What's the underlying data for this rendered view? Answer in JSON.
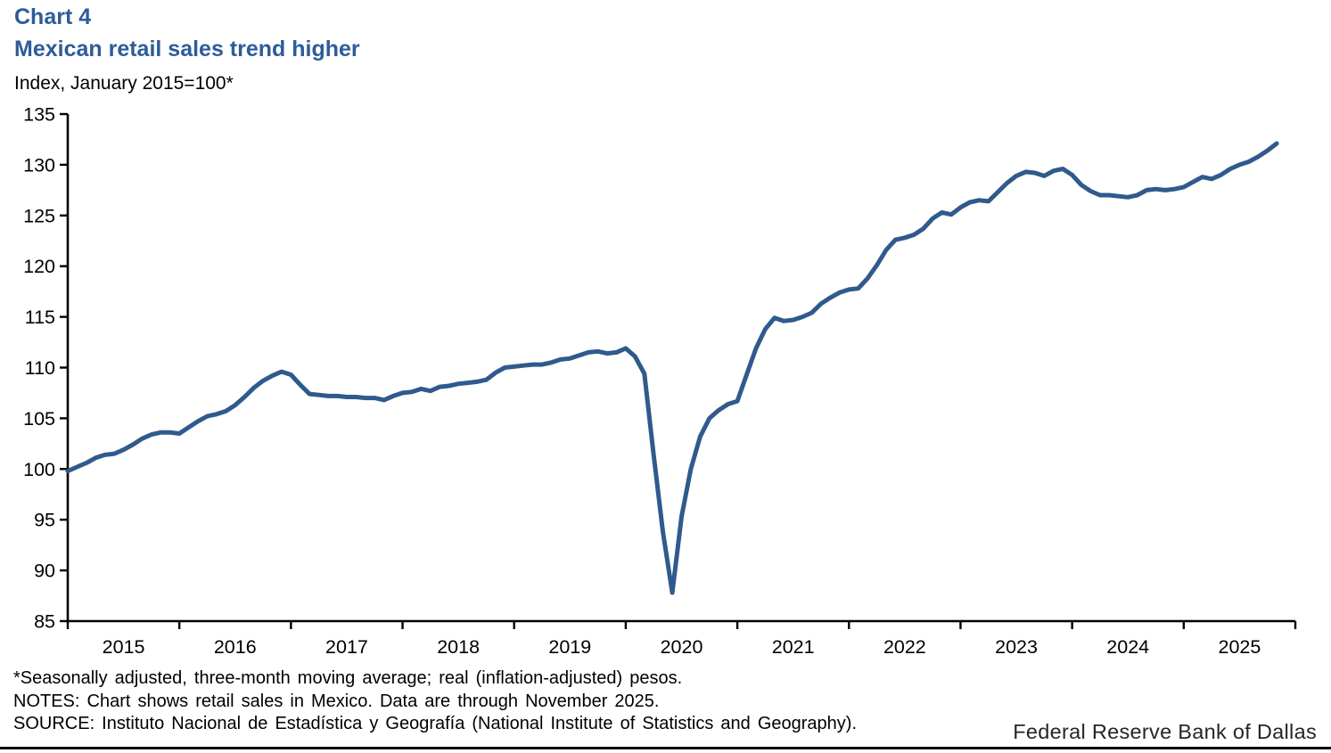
{
  "header": {
    "chart_label": "Chart 4",
    "title": "Mexican retail sales trend higher",
    "subtitle": "Index, January 2015=100*"
  },
  "colors": {
    "title_blue": "#2E5C99",
    "line_blue": "#305A8C",
    "axis_black": "#000000",
    "text_black": "#000000"
  },
  "chart_data": {
    "type": "line",
    "title": "Mexican retail sales trend higher",
    "xlabel": "",
    "ylabel": "Index, January 2015=100*",
    "frequency": "monthly",
    "x_start": "2015-01",
    "x_end": "2025-11",
    "x_tick_labels": [
      "2015",
      "2016",
      "2017",
      "2018",
      "2019",
      "2020",
      "2021",
      "2022",
      "2023",
      "2024",
      "2025"
    ],
    "y_ticks": [
      85,
      90,
      95,
      100,
      105,
      110,
      115,
      120,
      125,
      130,
      135
    ],
    "ylim": [
      85,
      135
    ],
    "grid": false,
    "legend_position": "none",
    "line_color": "#305A8C",
    "series": [
      {
        "name": "Mexican retail sales index (seasonally adjusted, 3-month moving average)",
        "values": [
          99.8,
          100.2,
          100.6,
          101.1,
          101.4,
          101.5,
          101.9,
          102.4,
          103.0,
          103.4,
          103.6,
          103.6,
          103.5,
          104.1,
          104.7,
          105.2,
          105.4,
          105.7,
          106.3,
          107.1,
          108.0,
          108.7,
          109.2,
          109.6,
          109.3,
          108.3,
          107.4,
          107.3,
          107.2,
          107.2,
          107.1,
          107.1,
          107.0,
          107.0,
          106.8,
          107.2,
          107.5,
          107.6,
          107.9,
          107.7,
          108.1,
          108.2,
          108.4,
          108.5,
          108.6,
          108.8,
          109.5,
          110.0,
          110.1,
          110.2,
          110.3,
          110.3,
          110.5,
          110.8,
          110.9,
          111.2,
          111.5,
          111.6,
          111.4,
          111.5,
          111.9,
          111.1,
          109.4,
          101.4,
          93.8,
          87.8,
          95.3,
          100.0,
          103.2,
          105.0,
          105.8,
          106.4,
          106.7,
          109.3,
          111.9,
          113.8,
          114.9,
          114.6,
          114.7,
          115.0,
          115.4,
          116.3,
          116.9,
          117.4,
          117.7,
          117.8,
          118.8,
          120.1,
          121.6,
          122.6,
          122.8,
          123.1,
          123.7,
          124.7,
          125.3,
          125.1,
          125.8,
          126.3,
          126.5,
          126.4,
          127.3,
          128.2,
          128.9,
          129.3,
          129.2,
          128.9,
          129.4,
          129.6,
          129.0,
          128.0,
          127.4,
          127.0,
          127.0,
          126.9,
          126.8,
          127.0,
          127.5,
          127.6,
          127.5,
          127.6,
          127.8,
          128.3,
          128.8,
          128.6,
          129.0,
          129.6,
          130.0,
          130.3,
          130.8,
          131.4,
          132.1
        ]
      }
    ]
  },
  "footnotes": {
    "line1": "*Seasonally adjusted, three-month moving average; real (inflation-adjusted) pesos.",
    "line2": "NOTES: Chart shows retail sales in Mexico. Data are through November 2025.",
    "line3": "SOURCE: Instituto Nacional de Estadística y Geografía (National Institute of Statistics and Geography)."
  },
  "footer": {
    "organization": "Federal Reserve Bank of Dallas"
  }
}
